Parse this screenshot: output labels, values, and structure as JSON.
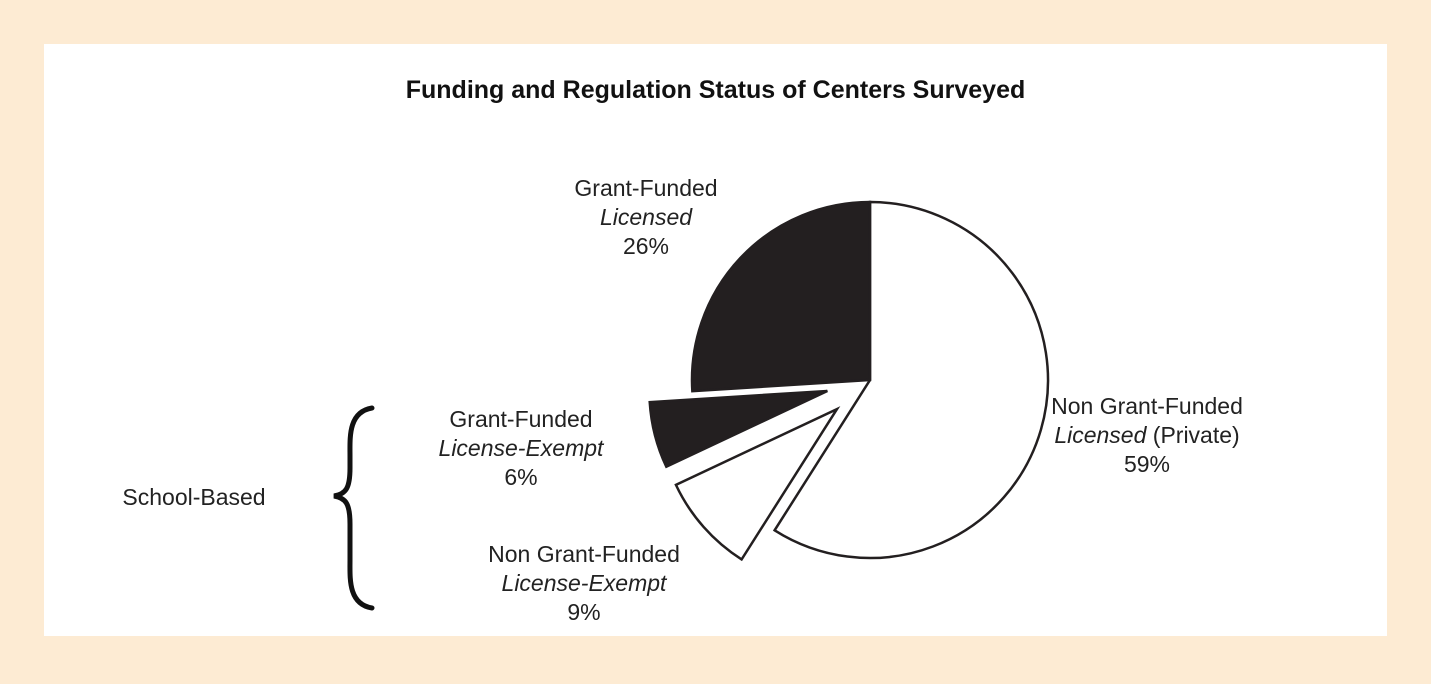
{
  "chart_data": {
    "type": "pie",
    "title": "Funding and Regulation Status of Centers Surveyed",
    "slices": [
      {
        "line1": "Non Grant-Funded",
        "line2_italic": "Licensed",
        "line2_rest": " (Private)",
        "value": 59,
        "value_label": "59%",
        "fill": "#ffffff",
        "exploded": false
      },
      {
        "line1": "Non Grant-Funded",
        "line2_italic": "License-Exempt",
        "line2_rest": "",
        "value": 9,
        "value_label": "9%",
        "fill": "#ffffff",
        "exploded": true
      },
      {
        "line1": "Grant-Funded",
        "line2_italic": "License-Exempt",
        "line2_rest": "",
        "value": 6,
        "value_label": "6%",
        "fill": "#231f20",
        "exploded": true
      },
      {
        "line1": "Grant-Funded",
        "line2_italic": "Licensed",
        "line2_rest": "",
        "value": 26,
        "value_label": "26%",
        "fill": "#231f20",
        "exploded": false
      }
    ],
    "group_bracket": {
      "label": "School-Based"
    }
  },
  "colors": {
    "background": "#fdebd3",
    "panel": "#ffffff",
    "dark_slice": "#231f20",
    "outline": "#231f20"
  }
}
